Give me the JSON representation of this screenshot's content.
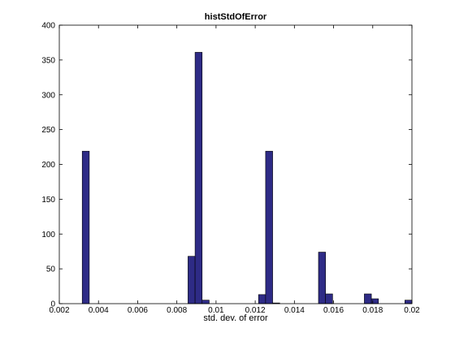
{
  "chart_data": {
    "type": "bar",
    "title": "histStdOfError",
    "xlabel": "std. dev. of error",
    "ylabel": "",
    "xlim": [
      0.002,
      0.02
    ],
    "ylim": [
      0,
      400
    ],
    "grid": false,
    "xticks": [
      0.002,
      0.004,
      0.006,
      0.008,
      0.01,
      0.012,
      0.014,
      0.016,
      0.018,
      0.02
    ],
    "xtick_labels": [
      "0.002",
      "0.004",
      "0.006",
      "0.008",
      "0.01",
      "0.012",
      "0.014",
      "0.016",
      "0.018",
      "0.02"
    ],
    "yticks": [
      0,
      50,
      100,
      150,
      200,
      250,
      300,
      350,
      400
    ],
    "ytick_labels": [
      "0",
      "50",
      "100",
      "150",
      "200",
      "250",
      "300",
      "350",
      "400"
    ],
    "bar_width": 0.00036,
    "bars": [
      {
        "x": 0.00335,
        "value": 219
      },
      {
        "x": 0.00875,
        "value": 68
      },
      {
        "x": 0.00911,
        "value": 361
      },
      {
        "x": 0.00947,
        "value": 5
      },
      {
        "x": 0.01235,
        "value": 13
      },
      {
        "x": 0.01271,
        "value": 219
      },
      {
        "x": 0.01307,
        "value": 1
      },
      {
        "x": 0.01541,
        "value": 74
      },
      {
        "x": 0.01577,
        "value": 14
      },
      {
        "x": 0.01775,
        "value": 14
      },
      {
        "x": 0.01811,
        "value": 7
      },
      {
        "x": 0.01982,
        "value": 5
      }
    ]
  }
}
